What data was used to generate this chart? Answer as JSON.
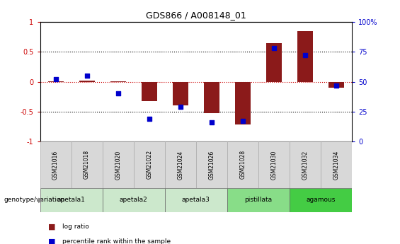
{
  "title": "GDS866 / A008148_01",
  "samples": [
    "GSM21016",
    "GSM21018",
    "GSM21020",
    "GSM21022",
    "GSM21024",
    "GSM21026",
    "GSM21028",
    "GSM21030",
    "GSM21032",
    "GSM21034"
  ],
  "log_ratio": [
    0.01,
    0.02,
    0.005,
    -0.32,
    -0.4,
    -0.52,
    -0.72,
    0.65,
    0.85,
    -0.1
  ],
  "percentile": [
    52,
    55,
    40,
    19,
    29,
    16,
    17,
    78,
    72,
    47
  ],
  "groups": [
    {
      "label": "apetala1",
      "samples": [
        "GSM21016",
        "GSM21018"
      ],
      "color": "#cce8cc"
    },
    {
      "label": "apetala2",
      "samples": [
        "GSM21020",
        "GSM21022"
      ],
      "color": "#cce8cc"
    },
    {
      "label": "apetala3",
      "samples": [
        "GSM21024",
        "GSM21026"
      ],
      "color": "#cce8cc"
    },
    {
      "label": "pistillata",
      "samples": [
        "GSM21028",
        "GSM21030"
      ],
      "color": "#88dd88"
    },
    {
      "label": "agamous",
      "samples": [
        "GSM21032",
        "GSM21034"
      ],
      "color": "#44cc44"
    }
  ],
  "sample_box_color": "#d8d8d8",
  "bar_color": "#8b1a1a",
  "dot_color": "#0000cc",
  "zero_line_color": "#cc0000",
  "hline_color": "#000000",
  "ylim": [
    -1,
    1
  ],
  "y2lim": [
    0,
    100
  ],
  "bar_width": 0.5,
  "dot_size": 25,
  "legend_bar_label": "log ratio",
  "legend_dot_label": "percentile rank within the sample",
  "genotype_label": "genotype/variation",
  "bg_color": "#ffffff"
}
